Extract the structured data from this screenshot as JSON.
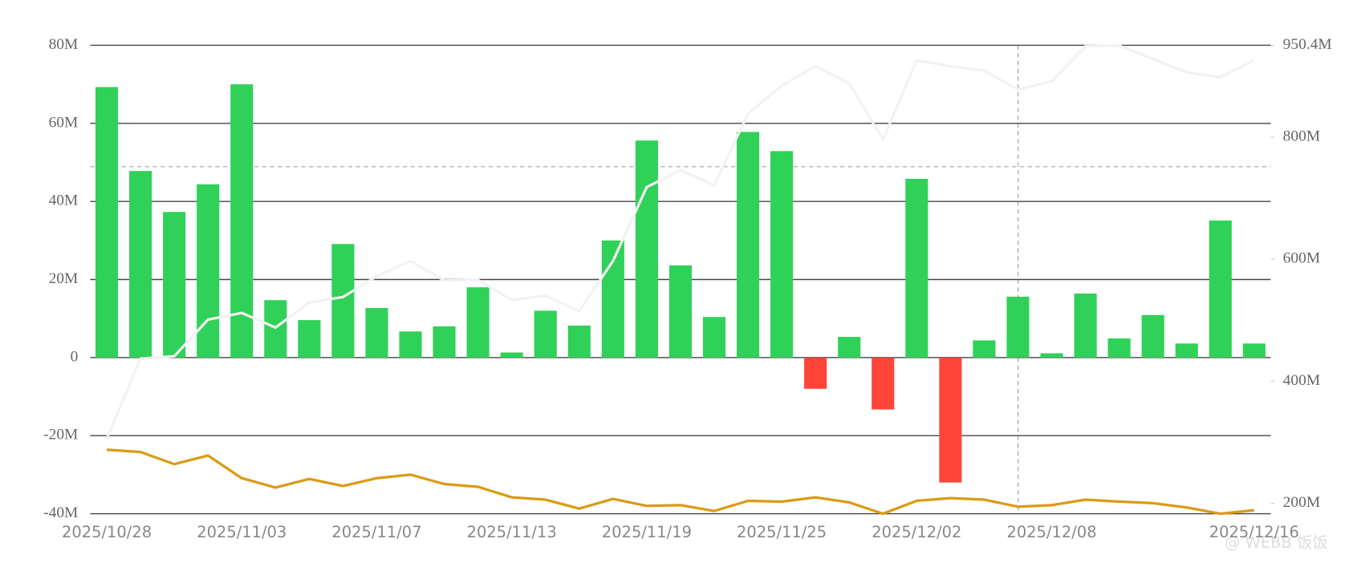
{
  "chart_data": {
    "type": "bar",
    "categories": [
      "2025/10/28",
      null,
      null,
      null,
      "2025/11/03",
      null,
      null,
      null,
      "2025/11/07",
      null,
      null,
      null,
      "2025/11/13",
      null,
      null,
      null,
      "2025/11/19",
      null,
      null,
      null,
      "2025/11/25",
      null,
      null,
      null,
      "2025/12/02",
      null,
      null,
      null,
      "2025/12/08",
      null,
      null,
      null,
      null,
      null,
      "2025/12/16"
    ],
    "ylim": [
      -40,
      80
    ],
    "yticks": [
      {
        "value": -40,
        "label": "-40M"
      },
      {
        "value": -20,
        "label": "-20M"
      },
      {
        "value": 0,
        "label": "0"
      },
      {
        "value": 20,
        "label": "20M"
      },
      {
        "value": 40,
        "label": "40M"
      },
      {
        "value": 60,
        "label": "60M"
      },
      {
        "value": 80,
        "label": "80M"
      }
    ],
    "y2lim": [
      183,
      950.4
    ],
    "y2ticks": [
      {
        "value": 200,
        "label": "200M"
      },
      {
        "value": 400,
        "label": "400M"
      },
      {
        "value": 600,
        "label": "600M"
      },
      {
        "value": 800,
        "label": "800M"
      },
      {
        "value": 950.4,
        "label": "950.4M"
      }
    ],
    "grid": true,
    "series": [
      {
        "type": "bar",
        "color": "#30d158",
        "negative_color": "#ff453a",
        "values": [
          69.3,
          47.8,
          37.3,
          44.4,
          70,
          14.7,
          9.6,
          29.1,
          12.7,
          6.7,
          8,
          18,
          1.3,
          12,
          8.2,
          30,
          55.6,
          23.6,
          10.4,
          57.8,
          52.9,
          -8,
          5.3,
          -13.3,
          45.8,
          -32,
          4.4,
          15.6,
          1.1,
          16.4,
          4.9,
          10.9,
          3.6,
          35.1,
          3.6
        ]
      },
      {
        "type": "line",
        "color": "#dc9a14",
        "values": [
          -23.6,
          -24.2,
          -27.3,
          -25.1,
          -30.9,
          -33.3,
          -31.1,
          -32.9,
          -30.9,
          -30,
          -32.4,
          -33.1,
          -35.8,
          -36.4,
          -38.7,
          -36.2,
          -38,
          -37.8,
          -39.3,
          -36.7,
          -36.9,
          -35.8,
          -37.1,
          -40,
          -36.7,
          -36,
          -36.4,
          -38.2,
          -37.8,
          -36.4,
          -36.9,
          -37.3,
          -38.4,
          -40,
          -39.1
        ]
      },
      {
        "type": "line",
        "color": "#f2f2f2",
        "axis": "y2",
        "values": [
          306,
          437,
          441,
          501,
          512,
          488,
          529,
          538,
          572,
          597,
          565,
          566,
          533,
          540,
          515,
          597,
          718,
          746,
          721,
          838,
          884,
          916,
          888,
          796,
          926,
          916,
          909,
          878,
          891,
          949,
          950,
          928,
          906,
          898,
          926
        ]
      }
    ],
    "watermark": "@ WEBB 饭饭"
  }
}
